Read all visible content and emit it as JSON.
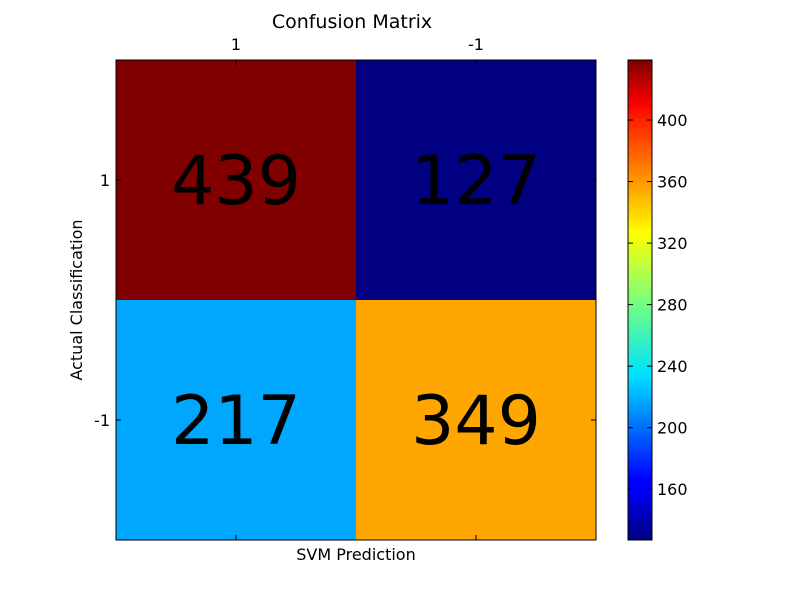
{
  "chart_data": {
    "type": "heatmap",
    "title": "Confusion Matrix",
    "xlabel": "SVM Prediction",
    "ylabel": "Actual Classification",
    "x_categories": [
      "1",
      "-1"
    ],
    "y_categories": [
      "1",
      "-1"
    ],
    "x_tick_position": "top",
    "values": [
      [
        439,
        127
      ],
      [
        217,
        349
      ]
    ],
    "colormap": "jet",
    "colorbar": {
      "min": 127,
      "max": 439,
      "ticks": [
        160,
        200,
        240,
        280,
        320,
        360,
        400
      ],
      "placement": "right"
    },
    "grid": false
  }
}
